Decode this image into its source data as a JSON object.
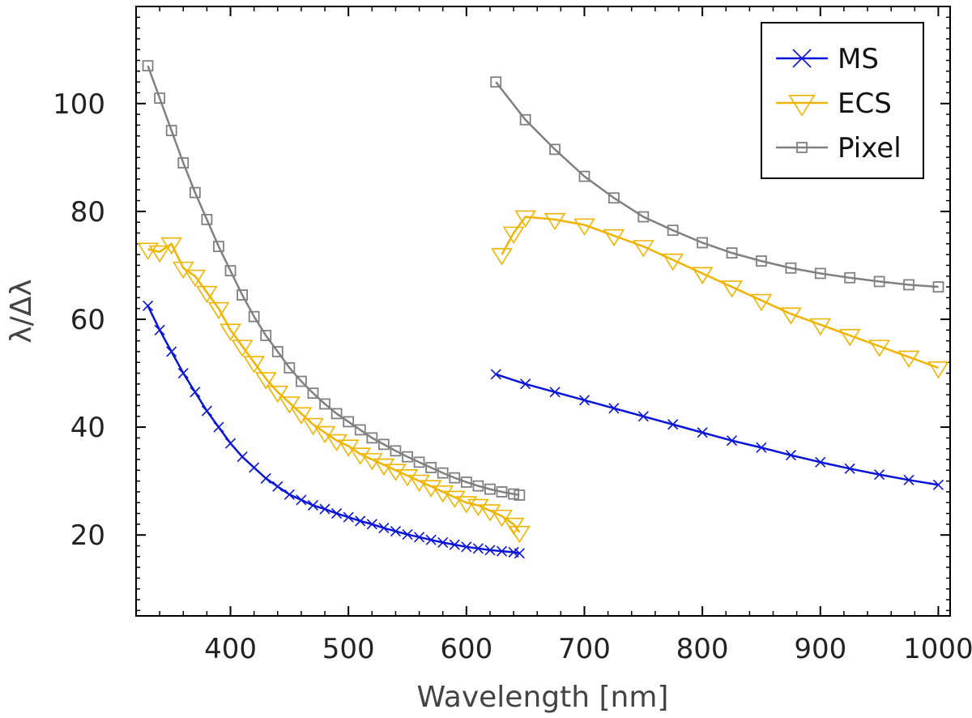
{
  "chart_data": {
    "type": "line",
    "xlabel": "Wavelength [nm]",
    "ylabel": "λ/Δλ",
    "xlim": [
      320,
      1010
    ],
    "ylim": [
      5,
      118
    ],
    "xticks": [
      400,
      500,
      600,
      700,
      800,
      900,
      1000
    ],
    "yticks": [
      20,
      40,
      60,
      80,
      100
    ],
    "grid": false,
    "legend_position": "top-right",
    "series": [
      {
        "name": "MS",
        "color": "#0a14d8",
        "marker": "x",
        "segments": [
          {
            "x": [
              330,
              340,
              350,
              360,
              370,
              380,
              390,
              400,
              410,
              420,
              430,
              440,
              450,
              460,
              470,
              480,
              490,
              500,
              510,
              520,
              530,
              540,
              550,
              560,
              570,
              580,
              590,
              600,
              610,
              620,
              630,
              640,
              645
            ],
            "y": [
              62.5,
              58,
              54,
              50,
              46.5,
              43,
              40,
              37,
              34.5,
              32.5,
              30.5,
              29,
              27.5,
              26.5,
              25.5,
              24.8,
              24,
              23.3,
              22.6,
              22,
              21.3,
              20.7,
              20.1,
              19.6,
              19.1,
              18.6,
              18.2,
              17.8,
              17.5,
              17.2,
              17,
              16.8,
              16.6
            ]
          },
          {
            "x": [
              625,
              650,
              675,
              700,
              725,
              750,
              775,
              800,
              825,
              850,
              875,
              900,
              925,
              950,
              975,
              1000
            ],
            "y": [
              49.8,
              48,
              46.5,
              45,
              43.5,
              42,
              40.5,
              39,
              37.5,
              36.2,
              34.8,
              33.5,
              32.3,
              31.2,
              30.2,
              29.3
            ]
          }
        ]
      },
      {
        "name": "ECS",
        "color": "#f0b400",
        "marker": "triangle-down",
        "segments": [
          {
            "x": [
              330,
              340,
              350,
              360,
              370,
              380,
              390,
              400,
              410,
              420,
              430,
              440,
              450,
              460,
              470,
              480,
              490,
              500,
              510,
              520,
              530,
              540,
              550,
              560,
              570,
              580,
              590,
              600,
              610,
              620,
              630,
              640,
              645
            ],
            "y": [
              73,
              72.5,
              74,
              69.5,
              68,
              65,
              62,
              58,
              55,
              52,
              49,
              46.5,
              44.5,
              42.5,
              40.5,
              39,
              37.5,
              36.5,
              35,
              34,
              33,
              32,
              31,
              30,
              29,
              28,
              27,
              26,
              25.5,
              24.5,
              23.5,
              22,
              20.5
            ]
          },
          {
            "x": [
              630,
              640,
              650,
              675,
              700,
              725,
              750,
              775,
              800,
              825,
              850,
              875,
              900,
              925,
              950,
              975,
              1000
            ],
            "y": [
              72,
              76,
              79,
              78.5,
              77.5,
              75.5,
              73.5,
              71,
              68.5,
              66,
              63.5,
              61,
              59,
              57,
              55,
              53,
              51
            ]
          }
        ]
      },
      {
        "name": "Pixel",
        "color": "#808080",
        "marker": "square",
        "segments": [
          {
            "x": [
              330,
              340,
              350,
              360,
              370,
              380,
              390,
              400,
              410,
              420,
              430,
              440,
              450,
              460,
              470,
              480,
              490,
              500,
              510,
              520,
              530,
              540,
              550,
              560,
              570,
              580,
              590,
              600,
              610,
              620,
              630,
              640,
              645
            ],
            "y": [
              107,
              101,
              95,
              89,
              83.5,
              78.5,
              73.5,
              69,
              64.5,
              60.5,
              57,
              54,
              51,
              48.5,
              46.3,
              44.3,
              42.5,
              41,
              39.5,
              38,
              36.8,
              35.6,
              34.5,
              33.5,
              32.5,
              31.5,
              30.6,
              29.8,
              29.1,
              28.5,
              28,
              27.6,
              27.4
            ]
          },
          {
            "x": [
              625,
              650,
              675,
              700,
              725,
              750,
              775,
              800,
              825,
              850,
              875,
              900,
              925,
              950,
              975,
              1000
            ],
            "y": [
              104,
              97,
              91.5,
              86.5,
              82.5,
              79,
              76.5,
              74.2,
              72.3,
              70.8,
              69.5,
              68.5,
              67.7,
              67,
              66.4,
              66
            ]
          }
        ]
      }
    ]
  }
}
